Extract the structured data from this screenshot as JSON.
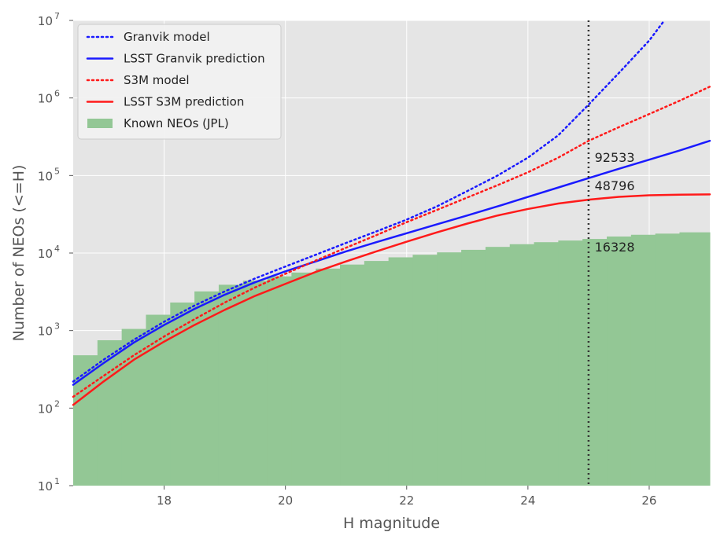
{
  "chart_data": {
    "type": "line",
    "title": "",
    "xlabel": "H magnitude",
    "ylabel": "Number of NEOs (<=H)",
    "xlim": [
      16.5,
      27.0
    ],
    "ylim": [
      10,
      10000000
    ],
    "yscale": "log",
    "grid": true,
    "legend_position": "top-left",
    "x_ticks": [
      18,
      20,
      22,
      24,
      26
    ],
    "y_ticks": [
      {
        "base": "10",
        "exp": "1"
      },
      {
        "base": "10",
        "exp": "2"
      },
      {
        "base": "10",
        "exp": "3"
      },
      {
        "base": "10",
        "exp": "4"
      },
      {
        "base": "10",
        "exp": "5"
      },
      {
        "base": "10",
        "exp": "6"
      },
      {
        "base": "10",
        "exp": "7"
      }
    ],
    "colors": {
      "plot_background": "#e5e5e5",
      "grid": "#ffffff",
      "granvik": "#1a1aff",
      "s3m": "#ff1a1a",
      "known": "#93c795",
      "vline": "#333333"
    },
    "series": [
      {
        "name": "Granvik model",
        "style": "dotted",
        "color": "#1a1aff",
        "x": [
          16.5,
          17,
          17.5,
          18,
          18.5,
          19,
          19.5,
          20,
          20.5,
          21,
          21.5,
          22,
          22.5,
          23,
          23.5,
          24,
          24.5,
          25,
          25.5,
          26,
          26.25
        ],
        "y": [
          220,
          420,
          760,
          1300,
          2100,
          3200,
          4700,
          6700,
          9500,
          13500,
          19000,
          27000,
          40000,
          63000,
          100000,
          170000,
          330000,
          820000,
          2100000,
          5500000,
          10000000
        ]
      },
      {
        "name": "LSST Granvik prediction",
        "style": "solid",
        "color": "#1a1aff",
        "x": [
          16.5,
          17,
          17.5,
          18,
          18.5,
          19,
          19.5,
          20,
          20.5,
          21,
          21.5,
          22,
          22.5,
          23,
          23.5,
          24,
          24.5,
          25,
          25.5,
          26,
          26.5,
          27
        ],
        "y": [
          200,
          380,
          700,
          1180,
          1900,
          2900,
          4200,
          5800,
          7800,
          10500,
          13800,
          18000,
          23500,
          30500,
          40000,
          53000,
          70000,
          92533,
          122000,
          160000,
          210000,
          280000
        ]
      },
      {
        "name": "S3M model",
        "style": "dotted",
        "color": "#ff1a1a",
        "x": [
          16.5,
          17,
          17.5,
          18,
          18.5,
          19,
          19.5,
          20,
          20.5,
          21,
          21.5,
          22,
          22.5,
          23,
          23.5,
          24,
          24.5,
          25,
          25.5,
          26,
          26.5,
          27
        ],
        "y": [
          140,
          260,
          480,
          840,
          1400,
          2300,
          3600,
          5400,
          8000,
          11700,
          17000,
          25000,
          36000,
          52000,
          75000,
          110000,
          170000,
          280000,
          420000,
          620000,
          920000,
          1400000
        ]
      },
      {
        "name": "LSST S3M prediction",
        "style": "solid",
        "color": "#ff1a1a",
        "x": [
          16.5,
          17,
          17.5,
          18,
          18.5,
          19,
          19.5,
          20,
          20.5,
          21,
          21.5,
          22,
          22.5,
          23,
          23.5,
          24,
          24.5,
          25,
          25.5,
          26,
          26.5,
          27
        ],
        "y": [
          110,
          220,
          420,
          720,
          1180,
          1850,
          2800,
          4000,
          5700,
          7800,
          10500,
          14000,
          18500,
          24000,
          30500,
          37000,
          43500,
          48796,
          53000,
          55500,
          56500,
          57000
        ]
      }
    ],
    "histogram": {
      "name": "Known NEOs (JPL)",
      "color": "#93c795",
      "edges": [
        16.5,
        16.9,
        17.3,
        17.7,
        18.1,
        18.5,
        18.9,
        19.3,
        19.7,
        20.1,
        20.5,
        20.9,
        21.3,
        21.7,
        22.1,
        22.5,
        22.9,
        23.3,
        23.7,
        24.1,
        24.5,
        24.9,
        25.3,
        25.7,
        26.1,
        26.5,
        27.0
      ],
      "counts": [
        480,
        750,
        1050,
        1600,
        2300,
        3200,
        3900,
        4400,
        5000,
        5600,
        6300,
        7100,
        7900,
        8800,
        9500,
        10200,
        11000,
        12000,
        13000,
        13800,
        14500,
        15200,
        16328,
        17200,
        17800,
        18500
      ]
    },
    "vline": {
      "x": 25,
      "style": "dotted",
      "color": "#333333"
    },
    "annotations": [
      {
        "text": "92533",
        "x": 25.1,
        "y": 150000
      },
      {
        "text": "48796",
        "x": 25.1,
        "y": 65000
      },
      {
        "text": "16328",
        "x": 25.1,
        "y": 10500
      }
    ]
  }
}
